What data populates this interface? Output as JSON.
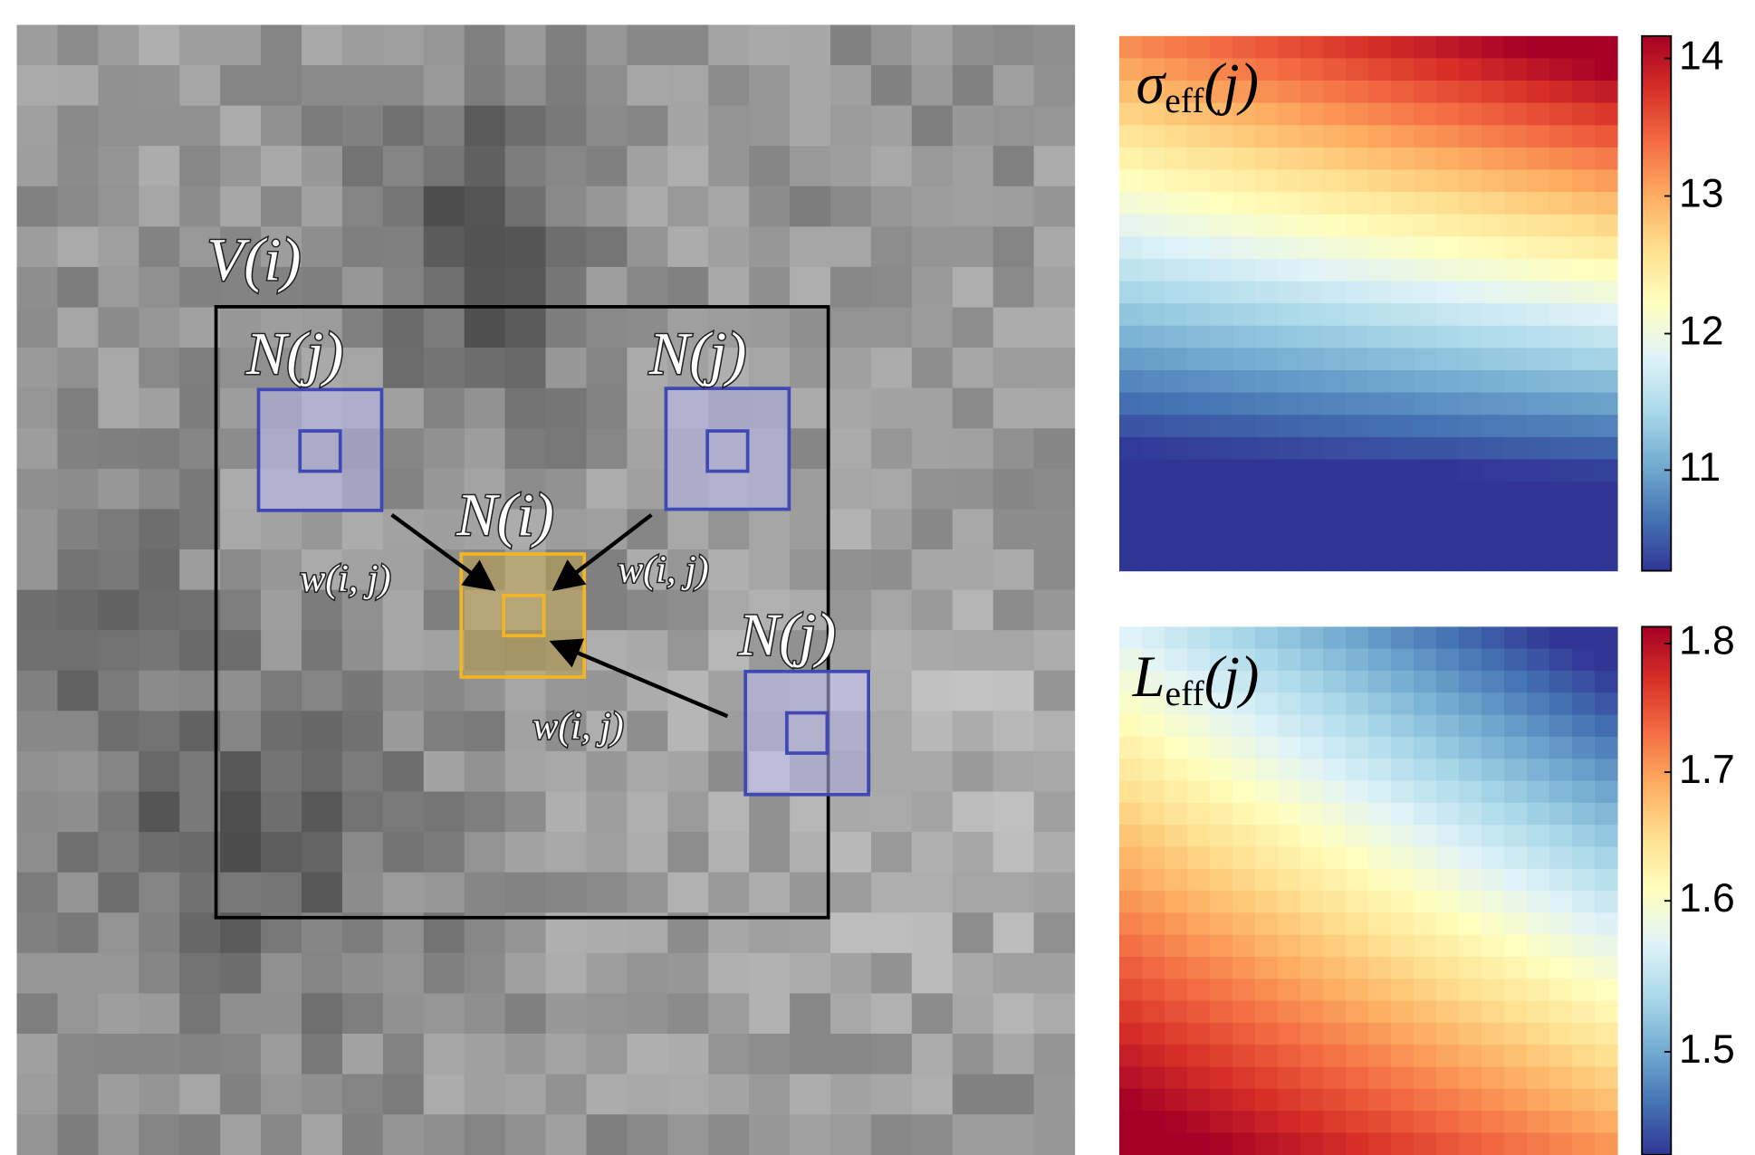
{
  "labels": {
    "window": "V(i)",
    "neighborhoods": [
      "N(j)",
      "N(j)",
      "N(j)"
    ],
    "center": "N(i)",
    "weights": [
      "w(i, j)",
      "w(i, j)",
      "w(i, j)"
    ]
  },
  "panels": [
    {
      "symbol": "σ",
      "subscript": "eff",
      "argument": "(j)",
      "colorbar_ticks": [
        "14",
        "13",
        "12",
        "11"
      ]
    },
    {
      "symbol": "L",
      "subscript": "eff",
      "argument": "(j)",
      "colorbar_ticks": [
        "1.8",
        "1.7",
        "1.6",
        "1.5"
      ]
    }
  ]
}
